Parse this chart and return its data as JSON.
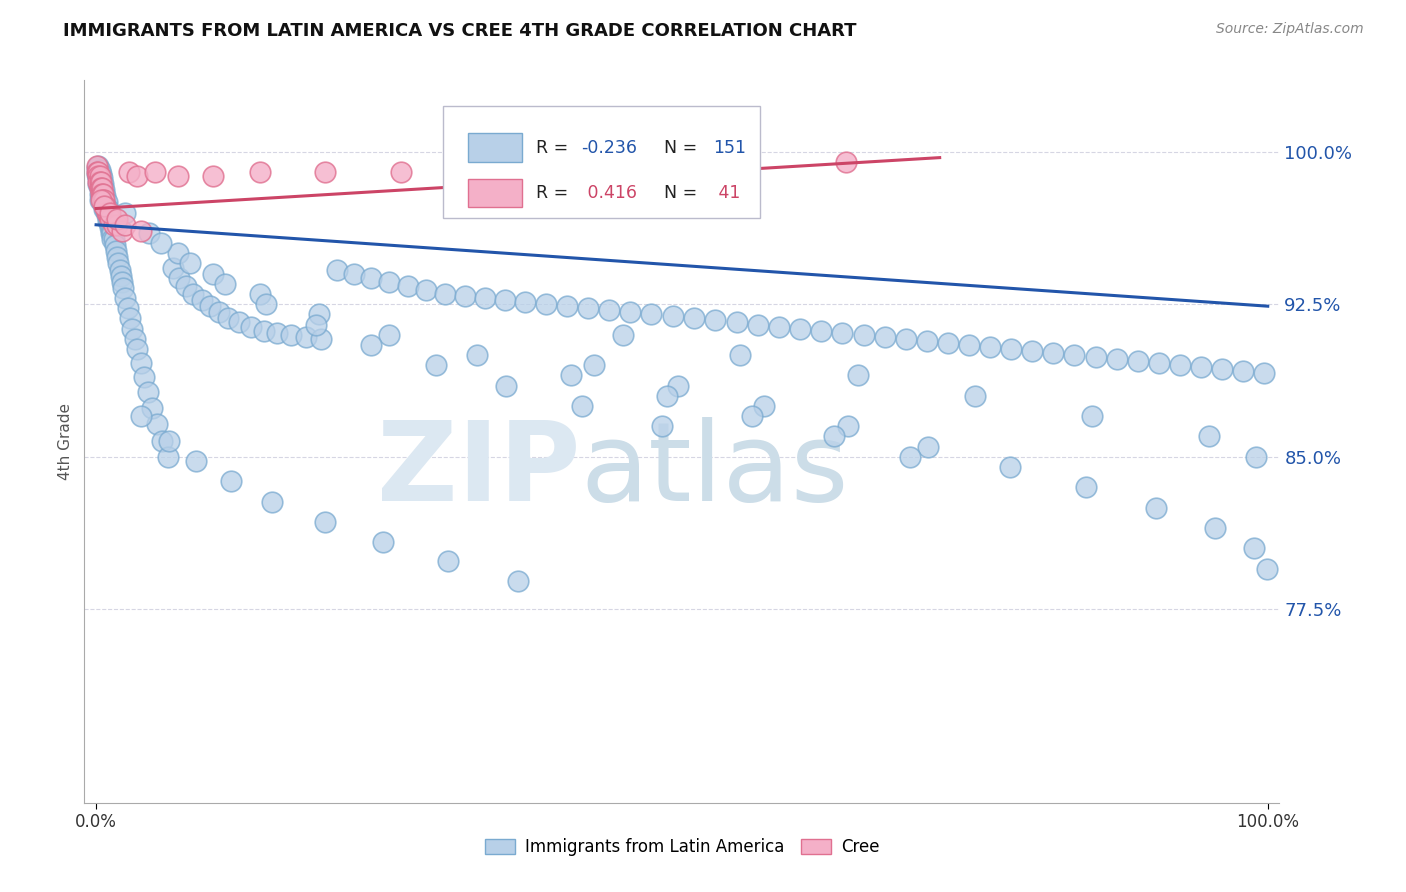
{
  "title": "IMMIGRANTS FROM LATIN AMERICA VS CREE 4TH GRADE CORRELATION CHART",
  "source": "Source: ZipAtlas.com",
  "ylabel": "4th Grade",
  "ylim": [
    0.68,
    1.035
  ],
  "xlim": [
    -0.01,
    1.01
  ],
  "blue_R": -0.236,
  "blue_N": 151,
  "pink_R": 0.416,
  "pink_N": 41,
  "blue_color": "#b8d0e8",
  "blue_edge": "#7aaad0",
  "blue_line_color": "#2255aa",
  "pink_color": "#f4b0c8",
  "pink_edge": "#e07090",
  "pink_line_color": "#cc4466",
  "legend_blue_label": "Immigrants from Latin America",
  "legend_pink_label": "Cree",
  "ytick_vals": [
    0.775,
    0.85,
    0.925,
    1.0
  ],
  "ytick_labels": [
    "77.5%",
    "85.0%",
    "92.5%",
    "100.0%"
  ],
  "blue_trendline": [
    0.0,
    1.0,
    0.964,
    0.924
  ],
  "pink_trendline": [
    0.0,
    0.72,
    0.972,
    0.997
  ],
  "blue_x": [
    0.001,
    0.001,
    0.002,
    0.002,
    0.002,
    0.002,
    0.003,
    0.003,
    0.003,
    0.003,
    0.003,
    0.003,
    0.004,
    0.004,
    0.004,
    0.004,
    0.004,
    0.005,
    0.005,
    0.005,
    0.005,
    0.005,
    0.006,
    0.006,
    0.006,
    0.006,
    0.007,
    0.007,
    0.007,
    0.007,
    0.008,
    0.008,
    0.008,
    0.009,
    0.009,
    0.009,
    0.01,
    0.01,
    0.01,
    0.011,
    0.011,
    0.012,
    0.012,
    0.013,
    0.013,
    0.014,
    0.014,
    0.015,
    0.016,
    0.017,
    0.018,
    0.019,
    0.02,
    0.021,
    0.022,
    0.023,
    0.025,
    0.027,
    0.029,
    0.031,
    0.033,
    0.035,
    0.038,
    0.041,
    0.044,
    0.048,
    0.052,
    0.056,
    0.061,
    0.066,
    0.071,
    0.077,
    0.083,
    0.09,
    0.097,
    0.105,
    0.113,
    0.122,
    0.132,
    0.143,
    0.154,
    0.166,
    0.179,
    0.192,
    0.206,
    0.22,
    0.235,
    0.25,
    0.266,
    0.282,
    0.298,
    0.315,
    0.332,
    0.349,
    0.366,
    0.384,
    0.402,
    0.42,
    0.438,
    0.456,
    0.474,
    0.492,
    0.51,
    0.528,
    0.547,
    0.565,
    0.583,
    0.601,
    0.619,
    0.637,
    0.655,
    0.673,
    0.691,
    0.709,
    0.727,
    0.745,
    0.763,
    0.781,
    0.799,
    0.817,
    0.835,
    0.853,
    0.871,
    0.889,
    0.907,
    0.925,
    0.943,
    0.961,
    0.979,
    0.997,
    0.038,
    0.062,
    0.085,
    0.115,
    0.15,
    0.195,
    0.245,
    0.3,
    0.36,
    0.425,
    0.497,
    0.57,
    0.642,
    0.71,
    0.78,
    0.845,
    0.905,
    0.955,
    0.988,
    0.999,
    0.45,
    0.55,
    0.65,
    0.75,
    0.85,
    0.95,
    0.99,
    0.025,
    0.045,
    0.07,
    0.1,
    0.14,
    0.19,
    0.25,
    0.325,
    0.405,
    0.487,
    0.56,
    0.63,
    0.695,
    0.055,
    0.08,
    0.11,
    0.145,
    0.188,
    0.235,
    0.29,
    0.35,
    0.415,
    0.483
  ],
  "blue_y": [
    0.992,
    0.989,
    0.993,
    0.99,
    0.987,
    0.984,
    0.991,
    0.988,
    0.985,
    0.982,
    0.979,
    0.976,
    0.989,
    0.986,
    0.983,
    0.98,
    0.977,
    0.987,
    0.984,
    0.981,
    0.978,
    0.975,
    0.984,
    0.981,
    0.978,
    0.975,
    0.981,
    0.978,
    0.975,
    0.972,
    0.978,
    0.975,
    0.972,
    0.975,
    0.972,
    0.969,
    0.972,
    0.969,
    0.966,
    0.969,
    0.966,
    0.966,
    0.963,
    0.963,
    0.96,
    0.96,
    0.957,
    0.957,
    0.954,
    0.951,
    0.948,
    0.945,
    0.942,
    0.939,
    0.936,
    0.933,
    0.928,
    0.923,
    0.918,
    0.913,
    0.908,
    0.903,
    0.896,
    0.889,
    0.882,
    0.874,
    0.866,
    0.858,
    0.85,
    0.943,
    0.938,
    0.934,
    0.93,
    0.927,
    0.924,
    0.921,
    0.918,
    0.916,
    0.914,
    0.912,
    0.911,
    0.91,
    0.909,
    0.908,
    0.942,
    0.94,
    0.938,
    0.936,
    0.934,
    0.932,
    0.93,
    0.929,
    0.928,
    0.927,
    0.926,
    0.925,
    0.924,
    0.923,
    0.922,
    0.921,
    0.92,
    0.919,
    0.918,
    0.917,
    0.916,
    0.915,
    0.914,
    0.913,
    0.912,
    0.911,
    0.91,
    0.909,
    0.908,
    0.907,
    0.906,
    0.905,
    0.904,
    0.903,
    0.902,
    0.901,
    0.9,
    0.899,
    0.898,
    0.897,
    0.896,
    0.895,
    0.894,
    0.893,
    0.892,
    0.891,
    0.87,
    0.858,
    0.848,
    0.838,
    0.828,
    0.818,
    0.808,
    0.799,
    0.789,
    0.895,
    0.885,
    0.875,
    0.865,
    0.855,
    0.845,
    0.835,
    0.825,
    0.815,
    0.805,
    0.795,
    0.91,
    0.9,
    0.89,
    0.88,
    0.87,
    0.86,
    0.85,
    0.97,
    0.96,
    0.95,
    0.94,
    0.93,
    0.92,
    0.91,
    0.9,
    0.89,
    0.88,
    0.87,
    0.86,
    0.85,
    0.955,
    0.945,
    0.935,
    0.925,
    0.915,
    0.905,
    0.895,
    0.885,
    0.875,
    0.865
  ],
  "pink_x": [
    0.001,
    0.001,
    0.002,
    0.002,
    0.002,
    0.003,
    0.003,
    0.003,
    0.004,
    0.004,
    0.004,
    0.005,
    0.005,
    0.006,
    0.006,
    0.007,
    0.008,
    0.009,
    0.01,
    0.012,
    0.015,
    0.018,
    0.022,
    0.028,
    0.035,
    0.05,
    0.07,
    0.1,
    0.14,
    0.195,
    0.26,
    0.34,
    0.43,
    0.53,
    0.64,
    0.004,
    0.007,
    0.012,
    0.018,
    0.025,
    0.038
  ],
  "pink_y": [
    0.993,
    0.99,
    0.99,
    0.988,
    0.985,
    0.988,
    0.985,
    0.982,
    0.985,
    0.982,
    0.979,
    0.982,
    0.979,
    0.979,
    0.976,
    0.976,
    0.973,
    0.97,
    0.97,
    0.967,
    0.964,
    0.964,
    0.961,
    0.99,
    0.988,
    0.99,
    0.988,
    0.988,
    0.99,
    0.99,
    0.99,
    0.991,
    0.993,
    0.993,
    0.995,
    0.976,
    0.973,
    0.97,
    0.967,
    0.964,
    0.961
  ]
}
